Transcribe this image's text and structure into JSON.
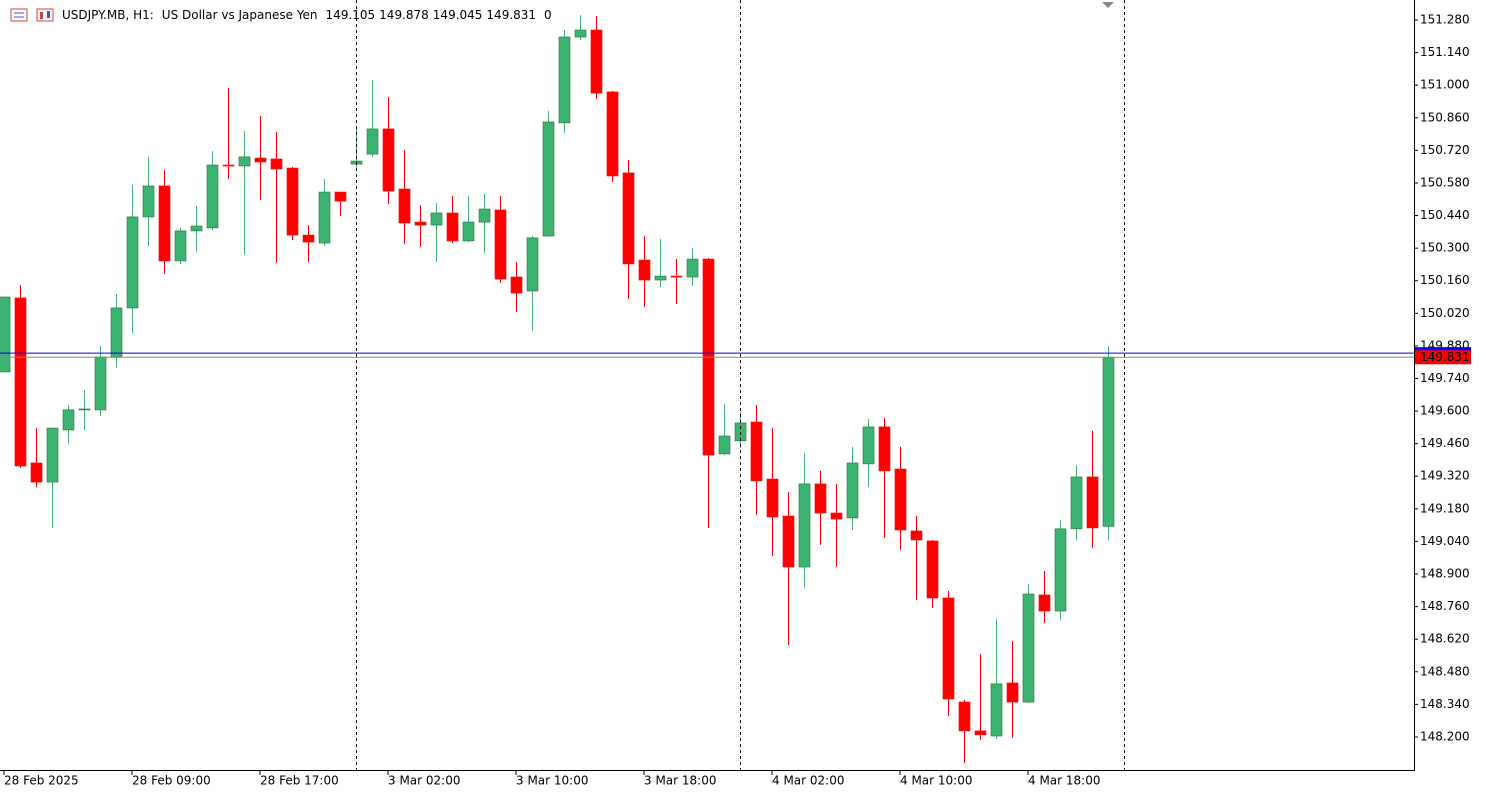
{
  "chart_data": {
    "type": "candlestick",
    "symbol": "USDJPY.MB, H1:",
    "description": "US Dollar vs Japanese Yen",
    "volume": 0,
    "categories": [
      "28 Feb 2025",
      null,
      null,
      null,
      null,
      null,
      null,
      null,
      "28 Feb 09:00",
      null,
      null,
      null,
      null,
      null,
      null,
      null,
      "28 Feb 17:00",
      null,
      null,
      null,
      null,
      null,
      null,
      null,
      "3 Mar 02:00",
      null,
      null,
      null,
      null,
      null,
      null,
      null,
      "3 Mar 10:00",
      null,
      null,
      null,
      null,
      null,
      null,
      null,
      "3 Mar 18:00",
      null,
      null,
      null,
      null,
      null,
      null,
      null,
      "4 Mar 02:00",
      null,
      null,
      null,
      null,
      null,
      null,
      null,
      "4 Mar 10:00",
      null,
      null,
      null,
      null,
      null,
      null,
      null,
      "4 Mar 18:00",
      null,
      null,
      null,
      null,
      null
    ],
    "open": [
      149.768,
      150.086,
      149.377,
      149.295,
      149.519,
      149.605,
      149.605,
      149.832,
      150.043,
      150.434,
      150.567,
      150.245,
      150.374,
      150.387,
      150.657,
      150.653,
      150.687,
      150.683,
      150.644,
      150.356,
      150.322,
      150.541,
      150.661,
      150.704,
      150.812,
      150.554,
      150.412,
      150.399,
      150.451,
      150.331,
      150.412,
      150.464,
      150.176,
      150.116,
      150.352,
      150.838,
      151.207,
      151.237,
      150.971,
      150.623,
      150.249,
      150.163,
      150.18,
      150.176,
      150.253,
      149.416,
      149.472,
      149.553,
      149.308,
      149.149,
      148.93,
      149.287,
      149.162,
      149.141,
      149.373,
      149.532,
      149.351,
      149.085,
      149.042,
      148.797,
      148.35,
      148.226,
      148.204,
      148.432,
      148.35,
      148.81,
      148.741,
      149.094,
      149.317,
      149.105
    ],
    "high": [
      150.09,
      150.142,
      149.527,
      149.527,
      149.626,
      149.691,
      149.88,
      150.103,
      150.571,
      150.692,
      150.636,
      150.387,
      150.481,
      150.717,
      150.988,
      150.803,
      150.868,
      150.799,
      150.649,
      150.399,
      150.597,
      150.541,
      150.812,
      151.022,
      150.949,
      150.722,
      150.485,
      150.494,
      150.524,
      150.524,
      150.533,
      150.524,
      150.24,
      150.352,
      150.889,
      151.237,
      151.301,
      151.297,
      150.975,
      150.679,
      150.352,
      150.339,
      150.253,
      150.301,
      150.258,
      149.63,
      149.596,
      149.626,
      149.527,
      149.252,
      149.42,
      149.343,
      149.287,
      149.446,
      149.566,
      149.57,
      149.446,
      149.149,
      149.046,
      148.827,
      148.359,
      148.557,
      148.707,
      148.612,
      148.857,
      148.913,
      149.132,
      149.368,
      149.515,
      149.878
    ],
    "low": [
      149.768,
      149.356,
      149.274,
      149.098,
      149.459,
      149.519,
      149.579,
      149.785,
      149.935,
      150.309,
      150.189,
      150.232,
      150.283,
      150.378,
      150.597,
      150.271,
      150.507,
      150.236,
      150.335,
      150.24,
      150.309,
      150.438,
      150.636,
      150.692,
      150.49,
      150.318,
      150.305,
      150.24,
      150.322,
      150.326,
      150.279,
      150.15,
      150.026,
      149.944,
      150.352,
      150.795,
      151.194,
      150.941,
      150.584,
      150.082,
      150.047,
      150.133,
      150.06,
      150.137,
      149.098,
      149.411,
      149.442,
      149.154,
      148.978,
      148.595,
      148.84,
      149.025,
      148.93,
      149.089,
      149.274,
      149.055,
      149.003,
      148.789,
      148.754,
      148.29,
      148.088,
      148.187,
      148.191,
      148.196,
      148.346,
      148.69,
      148.703,
      149.046,
      149.012,
      149.045
    ],
    "close": [
      150.09,
      149.364,
      149.295,
      149.527,
      149.605,
      149.609,
      149.832,
      150.043,
      150.434,
      150.567,
      150.245,
      150.374,
      150.395,
      150.657,
      150.653,
      150.692,
      150.67,
      150.64,
      150.356,
      150.326,
      150.541,
      150.502,
      150.674,
      150.812,
      150.545,
      150.408,
      150.399,
      150.451,
      150.331,
      150.412,
      150.468,
      150.167,
      150.107,
      150.344,
      150.842,
      151.207,
      151.237,
      150.966,
      150.61,
      150.232,
      150.163,
      150.18,
      150.176,
      150.253,
      149.411,
      149.493,
      149.549,
      149.3,
      149.145,
      148.93,
      149.287,
      149.162,
      149.136,
      149.377,
      149.532,
      149.343,
      149.089,
      149.046,
      148.797,
      148.363,
      148.226,
      148.209,
      148.428,
      148.35,
      148.814,
      148.741,
      149.094,
      149.317,
      149.098,
      149.831
    ],
    "up_color": "#3cb371",
    "down_color": "#ff0000",
    "ask_line": 149.849,
    "ask_color": "#0000ff",
    "ylim": [
      148.058,
      151.366
    ],
    "yticks": [
      {
        "value": 148.2,
        "label": "148.200"
      },
      {
        "value": 148.34,
        "label": "148.340"
      },
      {
        "value": 148.48,
        "label": "148.480"
      },
      {
        "value": 148.62,
        "label": "148.620"
      },
      {
        "value": 148.76,
        "label": "148.760"
      },
      {
        "value": 148.9,
        "label": "148.900"
      },
      {
        "value": 149.04,
        "label": "149.040"
      },
      {
        "value": 149.18,
        "label": "149.180"
      },
      {
        "value": 149.32,
        "label": "149.320"
      },
      {
        "value": 149.46,
        "label": "149.460"
      },
      {
        "value": 149.6,
        "label": "149.600"
      },
      {
        "value": 149.74,
        "label": "149.740"
      },
      {
        "value": 149.88,
        "label": "149.880"
      },
      {
        "value": 150.02,
        "label": "150.020"
      },
      {
        "value": 150.16,
        "label": "150.160"
      },
      {
        "value": 150.3,
        "label": "150.300"
      },
      {
        "value": 150.44,
        "label": "150.440"
      },
      {
        "value": 150.58,
        "label": "150.580"
      },
      {
        "value": 150.72,
        "label": "150.720"
      },
      {
        "value": 150.86,
        "label": "150.860"
      },
      {
        "value": 151.0,
        "label": "151.000"
      },
      {
        "value": 151.14,
        "label": "151.140"
      },
      {
        "value": 151.28,
        "label": "151.280"
      }
    ],
    "grid": false
  }
}
